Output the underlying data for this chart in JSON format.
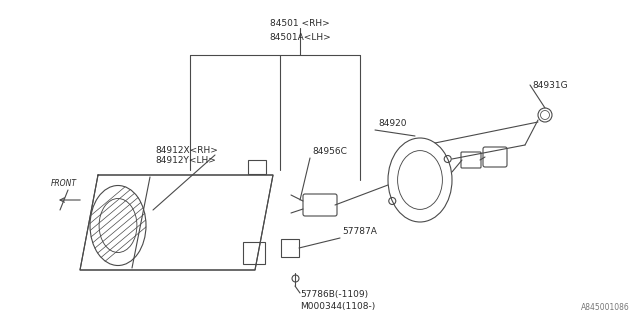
{
  "bg_color": "#ffffff",
  "line_color": "#4a4a4a",
  "text_color": "#2a2a2a",
  "diagram_ref": "A845001086",
  "figsize": [
    6.4,
    3.2
  ],
  "dpi": 100,
  "labels": {
    "84501_RH": "84501 <RH>",
    "84501A_LH": "84501A<LH>",
    "84931G": "84931G",
    "84920": "84920",
    "84956C": "84956C",
    "84912X_RH": "84912X<RH>",
    "84912Y_LH": "84912Y<LH>",
    "57787A": "57787A",
    "57786B": "57786B(-1109)",
    "M000344": "M000344(1108-)"
  }
}
